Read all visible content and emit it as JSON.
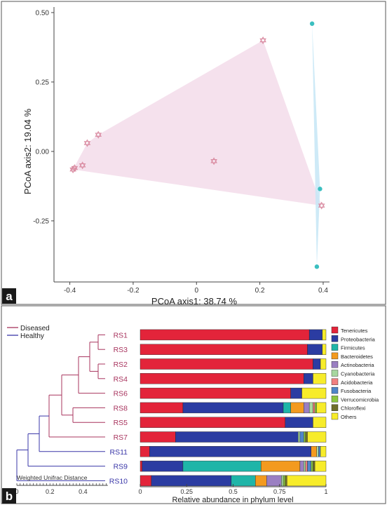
{
  "panel_labels": {
    "a": "a",
    "b": "b"
  },
  "chart_data": [
    {
      "type": "scatter",
      "xlabel": "PCoA axis1:  38.74 %",
      "ylabel": "PCoA axis2:  19.04 %",
      "xlim": [
        -0.45,
        0.42
      ],
      "ylim": [
        -0.47,
        0.52
      ],
      "xticks": [
        -0.4,
        -0.2,
        0.0,
        0.2,
        0.4
      ],
      "xtick_labels": [
        "-0.4",
        "-0.2",
        "0",
        "0.2",
        "0.4"
      ],
      "yticks": [
        0.5,
        0.25,
        0.0,
        -0.25
      ],
      "ytick_labels": [
        "0.50",
        "0.25",
        "0.00",
        "-0.25"
      ],
      "grid": false,
      "series": [
        {
          "color": "#d98aa0",
          "hull_color": "#f3dcea",
          "marker": "star-of-david",
          "x": [
            0.21,
            -0.31,
            -0.345,
            -0.36,
            -0.385,
            -0.39,
            0.055,
            0.395
          ],
          "y": [
            0.4,
            0.06,
            0.03,
            -0.05,
            -0.06,
            -0.065,
            -0.035,
            -0.195
          ]
        },
        {
          "color": "#3bbfc0",
          "hull_color": "#c6e6f6",
          "marker": "dot",
          "x": [
            0.365,
            0.39,
            0.38
          ],
          "y": [
            0.46,
            -0.135,
            -0.415
          ]
        }
      ]
    },
    {
      "type": "bar",
      "orientation": "horizontal",
      "stacked": true,
      "xlabel": "Relative abundance in phylum level",
      "xticks": [
        0,
        0.25,
        0.5,
        0.75,
        1
      ],
      "xtick_labels": [
        "0",
        "0.25",
        "0.5",
        "0.75",
        "1"
      ],
      "xlim": [
        0,
        1
      ],
      "legend_position": "right",
      "categories": [
        "RS1",
        "RS3",
        "RS2",
        "RS4",
        "RS6",
        "RS8",
        "RS5",
        "RS7",
        "RS11",
        "RS9",
        "RS10"
      ],
      "category_groups": [
        "Diseased",
        "Diseased",
        "Diseased",
        "Diseased",
        "Diseased",
        "Diseased",
        "Diseased",
        "Diseased",
        "Healthy",
        "Healthy",
        "Healthy"
      ],
      "group_legend": [
        {
          "name": "Diseased",
          "color": "#a8345e"
        },
        {
          "name": "Healthy",
          "color": "#3a37a8"
        }
      ],
      "series": [
        {
          "name": "Tenericutes",
          "color": "#e3243a",
          "values": [
            0.91,
            0.9,
            0.93,
            0.88,
            0.81,
            0.23,
            0.78,
            0.19,
            0.05,
            0.01,
            0.06
          ]
        },
        {
          "name": "Proteobacteria",
          "color": "#2b3ca2",
          "values": [
            0.07,
            0.08,
            0.04,
            0.05,
            0.06,
            0.54,
            0.15,
            0.66,
            0.87,
            0.22,
            0.43
          ]
        },
        {
          "name": "Firmicutes",
          "color": "#1fb5a8",
          "values": [
            0,
            0,
            0,
            0,
            0,
            0.04,
            0,
            0,
            0,
            0.42,
            0.13
          ]
        },
        {
          "name": "Bacteroidetes",
          "color": "#f39a1f",
          "values": [
            0,
            0,
            0,
            0,
            0,
            0.07,
            0,
            0,
            0.03,
            0.21,
            0.06
          ]
        },
        {
          "name": "Actinobacteria",
          "color": "#9a7fc2",
          "values": [
            0,
            0,
            0,
            0,
            0,
            0.03,
            0,
            0,
            0,
            0.02,
            0.08
          ]
        },
        {
          "name": "Cyanobacteria",
          "color": "#a7d7a0",
          "values": [
            0,
            0,
            0,
            0,
            0,
            0.02,
            0,
            0.01,
            0.01,
            0.01,
            0.01
          ]
        },
        {
          "name": "Acidobacteria",
          "color": "#f07f80",
          "values": [
            0,
            0,
            0,
            0,
            0,
            0.01,
            0,
            0,
            0,
            0.01,
            0
          ]
        },
        {
          "name": "Fusobacteria",
          "color": "#4f85c8",
          "values": [
            0,
            0,
            0,
            0,
            0,
            0,
            0,
            0.02,
            0.01,
            0.02,
            0
          ]
        },
        {
          "name": "Verrucomicrobia",
          "color": "#8cc63f",
          "values": [
            0,
            0,
            0,
            0,
            0,
            0.01,
            0,
            0.01,
            0,
            0.01,
            0.01
          ]
        },
        {
          "name": "Chloroflexi",
          "color": "#6e6e2a",
          "values": [
            0,
            0,
            0,
            0,
            0,
            0,
            0,
            0.01,
            0,
            0.01,
            0.01
          ]
        },
        {
          "name": "Others",
          "color": "#f7ec2a",
          "values": [
            0.02,
            0.02,
            0.03,
            0.07,
            0.13,
            0.05,
            0.07,
            0.1,
            0.03,
            0.06,
            0.21
          ]
        }
      ],
      "dendrogram": {
        "scale_label": "Weighted Unifrac Distance",
        "scale_ticks": [
          0,
          0.2,
          0.4
        ],
        "scale_tick_labels": [
          "0",
          "0.2",
          "0.4"
        ]
      }
    }
  ]
}
